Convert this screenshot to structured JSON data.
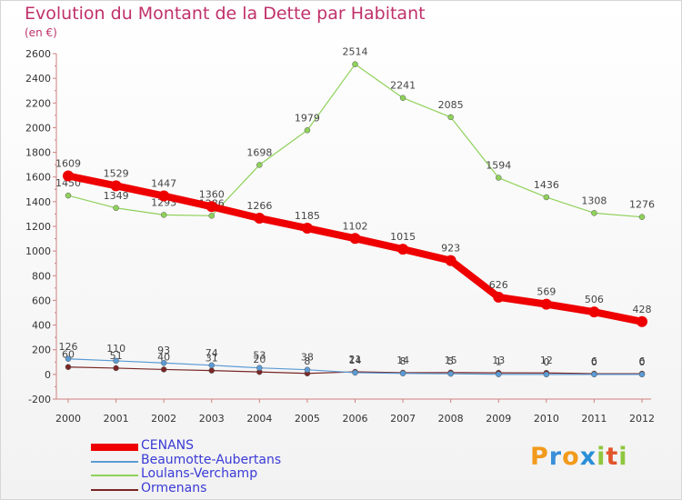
{
  "chart_data": {
    "type": "line",
    "title": "Evolution du Montant de la Dette par Habitant",
    "subtitle": "(en €)",
    "x": [
      "2000",
      "2001",
      "2002",
      "2003",
      "2004",
      "2005",
      "2006",
      "2007",
      "2008",
      "2009",
      "2010",
      "2011",
      "2012"
    ],
    "ylim": [
      -200,
      2600
    ],
    "yticks": [
      -200,
      0,
      200,
      400,
      600,
      800,
      1000,
      1200,
      1400,
      1600,
      1800,
      2000,
      2200,
      2400,
      2600
    ],
    "grid": false,
    "legend_position": "bottom-left",
    "series": [
      {
        "name": "CENANS",
        "color": "#ee0000",
        "values": [
          1609,
          1529,
          1447,
          1360,
          1266,
          1185,
          1102,
          1015,
          923,
          626,
          569,
          506,
          428
        ],
        "labels": [
          "1609",
          "1529",
          "1447",
          "1360",
          "1266",
          "1185",
          "1102",
          "1015",
          "923",
          "626",
          "569",
          "506",
          "428"
        ]
      },
      {
        "name": "Beaumotte-Aubertans",
        "color": "#5b9bd5",
        "values": [
          126,
          110,
          93,
          74,
          53,
          38,
          14,
          8,
          5,
          1,
          0,
          0,
          0
        ],
        "labels": [
          "126",
          "110",
          "93",
          "74",
          "53",
          "38",
          "14",
          "8",
          "5",
          "1",
          "0",
          "0",
          "0"
        ]
      },
      {
        "name": "Loulans-Verchamp",
        "color": "#8fd15a",
        "values": [
          1450,
          1349,
          1293,
          1286,
          1698,
          1979,
          2514,
          2241,
          2085,
          1594,
          1436,
          1308,
          1276
        ],
        "labels": [
          "1450",
          "1349",
          "1293",
          "1286",
          "1698",
          "1979",
          "2514",
          "2241",
          "2085",
          "1594",
          "1436",
          "1308",
          "1276"
        ]
      },
      {
        "name": "Ormenans",
        "color": "#7a2626",
        "values": [
          60,
          51,
          40,
          31,
          20,
          8,
          21,
          14,
          15,
          13,
          12,
          6,
          6
        ],
        "labels": [
          "60",
          "51",
          "40",
          "31",
          "20",
          "8",
          "21",
          "14",
          "15",
          "13",
          "12",
          "6",
          "6"
        ]
      }
    ]
  },
  "logo": {
    "letters": [
      "P",
      "r",
      "o",
      "x",
      "i",
      "t",
      "i"
    ],
    "colors": [
      "#f29a1b",
      "#3a8fd8",
      "#f29a1b",
      "#2a8fd8",
      "#8fc63e",
      "#e2552b",
      "#8fc63e"
    ]
  }
}
